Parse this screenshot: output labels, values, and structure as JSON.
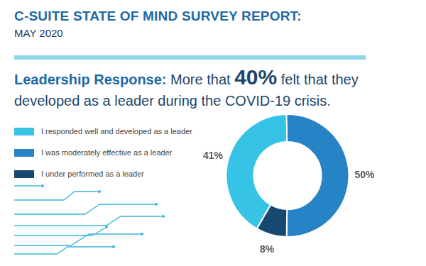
{
  "chart_data": {
    "type": "doughnut",
    "title": "C-SUITE STATE OF MIND SURVEY REPORT:",
    "subtitle": "MAY 2020",
    "annotations": [
      "Leadership Response:",
      "More that",
      "40%",
      "felt that they developed as a leader during the COVID-19 crisis."
    ],
    "categories": [
      "I responded well and developed as a leader",
      "I was moderately effective as a leader",
      "I under performed as a leader"
    ],
    "values": [
      41,
      50,
      8
    ],
    "value_labels": [
      "41%",
      "50%",
      "8%"
    ],
    "colors": [
      "#36c3e6",
      "#2684c6",
      "#17486f"
    ],
    "data_labels": true,
    "legend": "left"
  }
}
